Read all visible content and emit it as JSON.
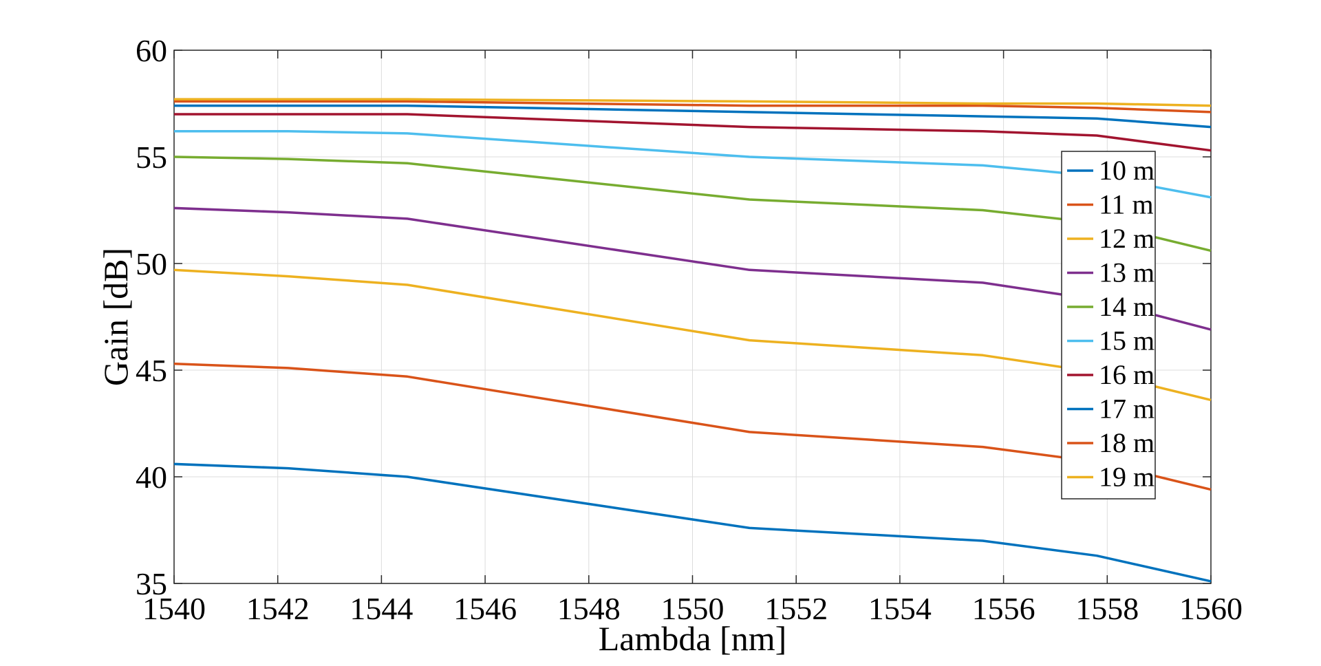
{
  "chart_data": {
    "type": "line",
    "title": "",
    "xlabel": "Lambda [nm]",
    "ylabel": "Gain [dB]",
    "xlim": [
      1540,
      1560
    ],
    "ylim": [
      35,
      60
    ],
    "xticks": [
      1540,
      1542,
      1544,
      1546,
      1548,
      1550,
      1552,
      1554,
      1556,
      1558,
      1560
    ],
    "yticks": [
      35,
      40,
      45,
      50,
      55,
      60
    ],
    "grid": true,
    "legend_position": "right",
    "x": [
      1540,
      1542.2,
      1544.5,
      1551.1,
      1555.6,
      1557.8,
      1560
    ],
    "series": [
      {
        "name": "10 m",
        "color": "#0072BD",
        "values": [
          40.6,
          40.4,
          40.0,
          37.6,
          37.0,
          36.3,
          35.1
        ]
      },
      {
        "name": "11 m",
        "color": "#D95319",
        "values": [
          45.3,
          45.1,
          44.7,
          42.1,
          41.4,
          40.7,
          39.4
        ]
      },
      {
        "name": "12 m",
        "color": "#EDB120",
        "values": [
          49.7,
          49.4,
          49.0,
          46.4,
          45.7,
          44.9,
          43.6
        ]
      },
      {
        "name": "13 m",
        "color": "#7E2F8E",
        "values": [
          52.6,
          52.4,
          52.1,
          49.7,
          49.1,
          48.3,
          46.9
        ]
      },
      {
        "name": "14 m",
        "color": "#77AC30",
        "values": [
          55.0,
          54.9,
          54.7,
          53.0,
          52.5,
          51.9,
          50.6
        ]
      },
      {
        "name": "15 m",
        "color": "#4DBEEE",
        "values": [
          56.2,
          56.2,
          56.1,
          55.0,
          54.6,
          54.1,
          53.1
        ]
      },
      {
        "name": "16 m",
        "color": "#A2142F",
        "values": [
          57.0,
          57.0,
          57.0,
          56.4,
          56.2,
          56.0,
          55.3
        ]
      },
      {
        "name": "17 m",
        "color": "#0072BD",
        "values": [
          57.4,
          57.4,
          57.4,
          57.1,
          56.9,
          56.8,
          56.4
        ]
      },
      {
        "name": "18 m",
        "color": "#D95319",
        "values": [
          57.6,
          57.6,
          57.6,
          57.4,
          57.4,
          57.3,
          57.1
        ]
      },
      {
        "name": "19 m",
        "color": "#EDB120",
        "values": [
          57.7,
          57.7,
          57.7,
          57.6,
          57.5,
          57.5,
          57.4
        ]
      }
    ]
  }
}
